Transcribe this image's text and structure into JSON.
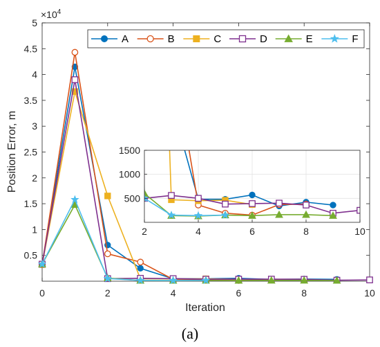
{
  "chart_data": {
    "type": "line",
    "main": {
      "xlabel": "Iteration",
      "ylabel": "Position Error, m",
      "exponent_label": "×10",
      "exponent_power": "4",
      "xlim": [
        0,
        10
      ],
      "ylim": [
        0,
        50000
      ],
      "xticks": [
        0,
        2,
        4,
        6,
        8,
        10
      ],
      "yticks": [
        5000,
        10000,
        15000,
        20000,
        25000,
        30000,
        35000,
        40000,
        45000,
        50000
      ],
      "ytick_labels": [
        "0.5",
        "1",
        "1.5",
        "2",
        "2.5",
        "3",
        "3.5",
        "4",
        "4.5",
        "5"
      ],
      "grid": false
    },
    "inset": {
      "xlim": [
        2,
        10
      ],
      "ylim": [
        0,
        1500
      ],
      "xticks": [
        2,
        4,
        6,
        8,
        10
      ],
      "yticks": [
        500,
        1000,
        1500
      ],
      "grid": true
    },
    "legend": {
      "position": "top",
      "orientation": "horizontal"
    },
    "series": [
      {
        "name": "A",
        "color": "#0072BD",
        "marker": "circle-filled",
        "x": [
          0,
          1,
          2,
          3,
          4,
          5,
          6,
          7,
          8,
          9
        ],
        "y": [
          3300,
          41500,
          7000,
          2500,
          480,
          480,
          570,
          340,
          420,
          360
        ]
      },
      {
        "name": "B",
        "color": "#D95319",
        "marker": "circle-open",
        "x": [
          0,
          1,
          2,
          3,
          4,
          5,
          6,
          7,
          8
        ],
        "y": [
          3200,
          44300,
          5300,
          3700,
          360,
          190,
          150,
          370,
          380
        ]
      },
      {
        "name": "C",
        "color": "#EDB120",
        "marker": "square-filled",
        "x": [
          0,
          1,
          2,
          3,
          4,
          5,
          6
        ],
        "y": [
          3200,
          36700,
          16500,
          470,
          450,
          460,
          370
        ]
      },
      {
        "name": "D",
        "color": "#7E2F8E",
        "marker": "square-open",
        "x": [
          0,
          1,
          2,
          3,
          4,
          5,
          6,
          7,
          8,
          9,
          10
        ],
        "y": [
          3300,
          39000,
          500,
          560,
          500,
          380,
          390,
          400,
          360,
          190,
          250
        ]
      },
      {
        "name": "E",
        "color": "#77AC30",
        "marker": "triangle-filled",
        "x": [
          0,
          1,
          2,
          3,
          4,
          5,
          6,
          7,
          8,
          9
        ],
        "y": [
          3300,
          14800,
          600,
          140,
          130,
          150,
          140,
          160,
          160,
          140
        ]
      },
      {
        "name": "F",
        "color": "#4DBEEE",
        "marker": "star",
        "x": [
          0,
          1,
          2,
          3,
          4,
          5
        ],
        "y": [
          3300,
          15800,
          500,
          150,
          140,
          150
        ]
      }
    ]
  },
  "panel_label": "(a)"
}
